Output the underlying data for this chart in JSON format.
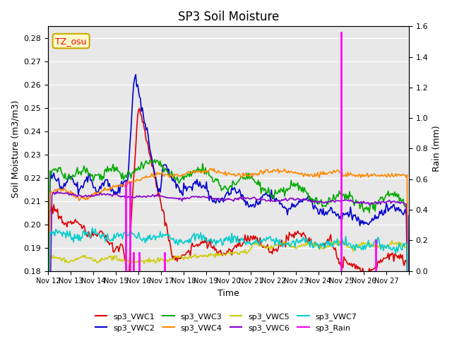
{
  "title": "SP3 Soil Moisture",
  "xlabel": "Time",
  "ylabel_left": "Soil Moisture (m3/m3)",
  "ylabel_right": "Rain (mm)",
  "annotation": "TZ_osu",
  "ylim_left": [
    0.18,
    0.285
  ],
  "ylim_right": [
    0.0,
    1.6
  ],
  "yticks_left": [
    0.18,
    0.19,
    0.2,
    0.21,
    0.22,
    0.23,
    0.24,
    0.25,
    0.26,
    0.27,
    0.28
  ],
  "yticks_right": [
    0.0,
    0.2,
    0.4,
    0.6,
    0.8,
    1.0,
    1.2,
    1.4,
    1.6
  ],
  "xtick_labels": [
    "Nov 12",
    "Nov 13",
    "Nov 14",
    "Nov 15",
    "Nov 16",
    "Nov 17",
    "Nov 18",
    "Nov 19",
    "Nov 20",
    "Nov 21",
    "Nov 22",
    "Nov 23",
    "Nov 24",
    "Nov 25",
    "Nov 26",
    "Nov 27",
    ""
  ],
  "colors": {
    "VWC1": "#dd0000",
    "VWC2": "#0000cc",
    "VWC3": "#00aa00",
    "VWC4": "#ff8800",
    "VWC5": "#cccc00",
    "VWC6": "#8800cc",
    "VWC7": "#00cccc",
    "Rain": "#ff00ff"
  },
  "rain_times": [
    3.45,
    3.62,
    3.78,
    4.05,
    5.15,
    12.98,
    14.52
  ],
  "rain_amounts": [
    0.58,
    0.58,
    0.12,
    0.12,
    0.12,
    1.56,
    0.2
  ],
  "bg_color": "#e8e8e8",
  "grid_color": "#ffffff"
}
